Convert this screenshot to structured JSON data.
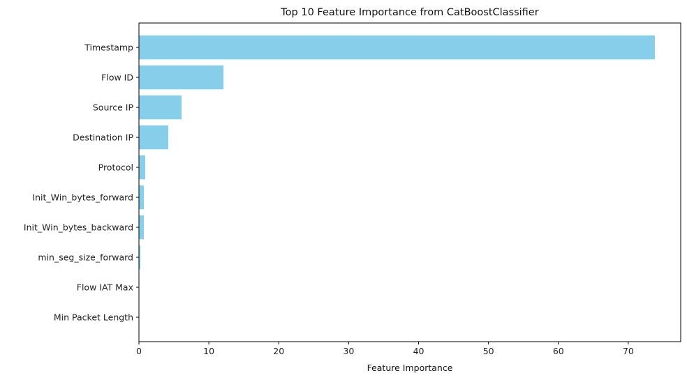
{
  "chart_data": {
    "type": "bar",
    "orientation": "horizontal",
    "title": "Top 10 Feature Importance from CatBoostClassifier",
    "xlabel": "Feature Importance",
    "ylabel": "",
    "categories": [
      "Timestamp",
      "Flow ID",
      "Source IP",
      "Destination IP",
      "Protocol",
      "Init_Win_bytes_forward",
      "Init_Win_bytes_backward",
      "min_seg_size_forward",
      "Flow IAT Max",
      "Min Packet Length"
    ],
    "values": [
      73.8,
      12.1,
      6.1,
      4.2,
      0.9,
      0.7,
      0.7,
      0.2,
      0.02,
      0.01
    ],
    "xlim": [
      0,
      77.5
    ],
    "xticks": [
      0,
      10,
      20,
      30,
      40,
      50,
      60,
      70
    ],
    "bar_color": "#87CEEB",
    "grid": false,
    "legend": "none"
  }
}
